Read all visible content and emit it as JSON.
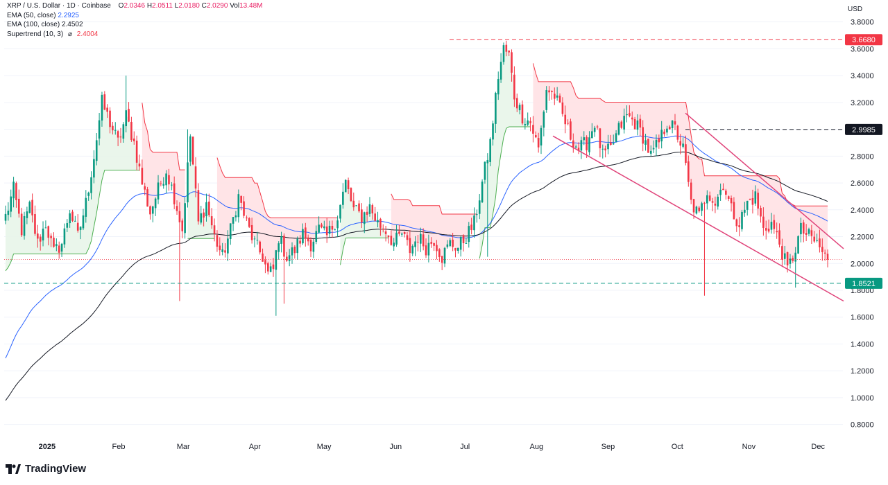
{
  "legend": {
    "symbol": "XRP / U.S. Dollar · 1D · Coinbase",
    "o_label": "O",
    "o_value": "2.0346",
    "h_label": "H",
    "h_value": "2.0511",
    "l_label": "L",
    "l_value": "2.0180",
    "c_label": "C",
    "c_value": "2.0290",
    "vol_label": "Vol",
    "vol_value": "13.48M",
    "ema50_label": "EMA (50, close)",
    "ema50_value": "2.2925",
    "ema100_label": "EMA (100, close)",
    "ema100_value": "2.4502",
    "supertrend_label": "Supertrend (10, 3)",
    "supertrend_symbol": "⌀",
    "supertrend_value": "2.4004"
  },
  "branding": {
    "name": "TradingView",
    "logo_icon": "tradingview-logo-icon"
  },
  "colors": {
    "up": "#089981",
    "down": "#f23645",
    "ema50": "#2962ff",
    "ema100": "#131722",
    "st_up_fill": "#e8f5e9",
    "st_down_fill": "#ffe1e4"
  },
  "chart_data": {
    "type": "candlestick",
    "currency": "USD",
    "x_ticks": [
      "2025",
      "Feb",
      "Mar",
      "Apr",
      "May",
      "Jun",
      "Jul",
      "Aug",
      "Sep",
      "Oct",
      "Nov",
      "Dec"
    ],
    "y_ticks": [
      "3.8000",
      "3.6000",
      "3.4000",
      "3.2000",
      "3.0000",
      "2.8000",
      "2.6000",
      "2.4000",
      "2.2000",
      "2.0000",
      "1.8000",
      "1.6000",
      "1.4000",
      "1.2000",
      "1.0000",
      "0.8000"
    ],
    "ylim": [
      0.7,
      3.85
    ],
    "levels": [
      {
        "label": "3.6680",
        "value": 3.668,
        "color": "#f23645"
      },
      {
        "label": "2.9985",
        "value": 2.9985,
        "color": "#131722"
      },
      {
        "label": "1.8521",
        "value": 1.8521,
        "color": "#089981"
      }
    ],
    "last_price": 2.029,
    "close_anchors": [
      [
        0,
        2.35
      ],
      [
        3,
        2.55
      ],
      [
        6,
        2.25
      ],
      [
        9,
        2.42
      ],
      [
        12,
        2.15
      ],
      [
        15,
        2.3
      ],
      [
        18,
        2.08
      ],
      [
        21,
        2.15
      ],
      [
        24,
        2.4
      ],
      [
        27,
        2.2
      ],
      [
        30,
        2.45
      ],
      [
        33,
        2.8
      ],
      [
        36,
        3.2
      ],
      [
        39,
        3.05
      ],
      [
        42,
        2.9
      ],
      [
        45,
        3.1
      ],
      [
        48,
        2.9
      ],
      [
        51,
        2.6
      ],
      [
        54,
        2.38
      ],
      [
        57,
        2.55
      ],
      [
        60,
        2.7
      ],
      [
        63,
        2.5
      ],
      [
        66,
        2.25
      ],
      [
        69,
        2.95
      ],
      [
        72,
        2.3
      ],
      [
        75,
        2.45
      ],
      [
        78,
        2.2
      ],
      [
        81,
        2.05
      ],
      [
        84,
        2.25
      ],
      [
        87,
        2.5
      ],
      [
        90,
        2.3
      ],
      [
        93,
        2.15
      ],
      [
        96,
        2.05
      ],
      [
        98,
        1.92
      ],
      [
        100,
        1.95
      ],
      [
        102,
        2.2
      ],
      [
        105,
        2.05
      ],
      [
        108,
        2.1
      ],
      [
        111,
        2.22
      ],
      [
        114,
        2.15
      ],
      [
        117,
        2.25
      ],
      [
        120,
        2.2
      ],
      [
        124,
        2.35
      ],
      [
        127,
        2.6
      ],
      [
        130,
        2.4
      ],
      [
        133,
        2.35
      ],
      [
        136,
        2.42
      ],
      [
        139,
        2.3
      ],
      [
        142,
        2.25
      ],
      [
        145,
        2.15
      ],
      [
        148,
        2.22
      ],
      [
        151,
        2.1
      ],
      [
        154,
        2.2
      ],
      [
        157,
        2.12
      ],
      [
        160,
        2.18
      ],
      [
        163,
        2.05
      ],
      [
        166,
        2.15
      ],
      [
        169,
        2.12
      ],
      [
        172,
        2.2
      ],
      [
        175,
        2.3
      ],
      [
        178,
        2.6
      ],
      [
        181,
        2.9
      ],
      [
        184,
        3.4
      ],
      [
        186,
        3.6
      ],
      [
        188,
        3.55
      ],
      [
        190,
        3.25
      ],
      [
        193,
        3.1
      ],
      [
        196,
        3.05
      ],
      [
        199,
        2.85
      ],
      [
        202,
        3.3
      ],
      [
        205,
        3.25
      ],
      [
        208,
        3.1
      ],
      [
        211,
        2.95
      ],
      [
        214,
        2.85
      ],
      [
        217,
        2.9
      ],
      [
        220,
        3.05
      ],
      [
        223,
        2.8
      ],
      [
        226,
        2.85
      ],
      [
        229,
        3.0
      ],
      [
        232,
        3.1
      ],
      [
        235,
        3.05
      ],
      [
        238,
        2.95
      ],
      [
        241,
        2.8
      ],
      [
        244,
        2.9
      ],
      [
        247,
        3.05
      ],
      [
        250,
        3.0
      ],
      [
        253,
        2.85
      ],
      [
        256,
        2.45
      ],
      [
        259,
        2.35
      ],
      [
        262,
        2.55
      ],
      [
        265,
        2.45
      ],
      [
        268,
        2.6
      ],
      [
        271,
        2.4
      ],
      [
        274,
        2.3
      ],
      [
        277,
        2.45
      ],
      [
        280,
        2.5
      ],
      [
        283,
        2.25
      ],
      [
        286,
        2.3
      ],
      [
        289,
        2.15
      ],
      [
        292,
        1.95
      ],
      [
        294,
        2.05
      ],
      [
        297,
        2.25
      ],
      [
        300,
        2.2
      ],
      [
        303,
        2.15
      ],
      [
        306,
        2.05
      ],
      [
        307,
        2.03
      ]
    ]
  }
}
